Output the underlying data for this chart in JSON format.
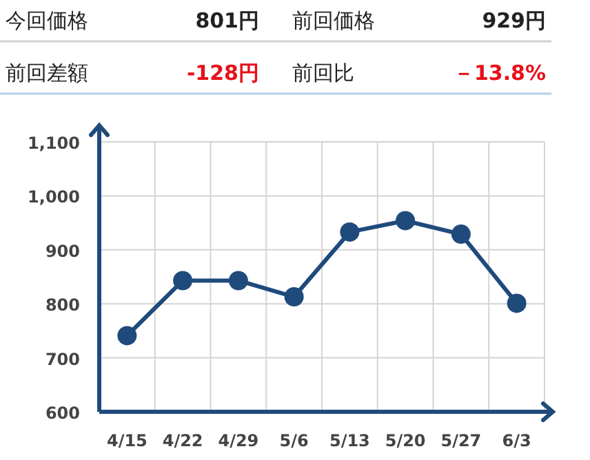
{
  "chart_data": [
    {
      "type": "other",
      "annotations": [
        "今回価格",
        "801円",
        "前回価格",
        "929円",
        "前回差額",
        "-128円",
        "前回比",
        "－13.8%"
      ]
    },
    {
      "type": "line",
      "categories": [
        "4/15",
        "4/22",
        "4/29",
        "5/6",
        "5/13",
        "5/20",
        "5/27",
        "6/3"
      ],
      "series": [
        {
          "color": "#1f4a7c",
          "values": [
            741,
            843,
            843,
            813,
            933,
            954,
            929,
            801
          ]
        }
      ],
      "ylim": [
        600,
        1100
      ],
      "yticks": [
        600,
        700,
        800,
        900,
        {
          "value": 1000,
          "label": "1,000"
        },
        {
          "value": 1100,
          "label": "1,100"
        }
      ],
      "grid": true,
      "marker": "circle",
      "line_style": "solid"
    }
  ]
}
